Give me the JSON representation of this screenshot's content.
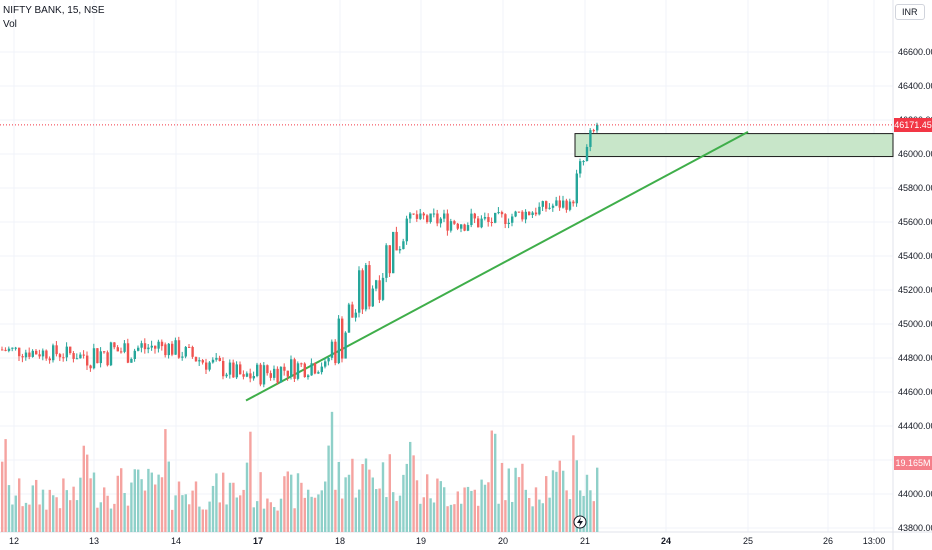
{
  "symbol_line": "NIFTY BANK, 15, NSE",
  "vol_label": "Vol",
  "currency": "INR",
  "last_price_label": "46171.45",
  "last_volume_label": "19.165M",
  "colors": {
    "up": "#26a69a",
    "down": "#ef5350",
    "vol_up": "#8fd0c9",
    "vol_down": "#f5a3a0",
    "trendline": "#3fae4a",
    "zone_fill": "#c8e6c9",
    "zone_border": "#1b1b1b",
    "last_price": "#f23645"
  },
  "chart_data": {
    "type": "candlestick",
    "y_axis": {
      "min": 43800,
      "max": 46800,
      "ticks": [
        "46600.00",
        "46400.00",
        "46200.00",
        "46000.00",
        "45800.00",
        "45600.00",
        "45400.00",
        "45200.00",
        "45000.00",
        "44800.00",
        "44600.00",
        "44400.00",
        "44200.00",
        "44000.00",
        "43800.00"
      ]
    },
    "x_axis": {
      "ticks": [
        {
          "label": "12",
          "bold": false
        },
        {
          "label": "13",
          "bold": false
        },
        {
          "label": "14",
          "bold": false
        },
        {
          "label": "17",
          "bold": true
        },
        {
          "label": "18",
          "bold": false
        },
        {
          "label": "19",
          "bold": false
        },
        {
          "label": "20",
          "bold": false
        },
        {
          "label": "21",
          "bold": false
        },
        {
          "label": "24",
          "bold": true
        },
        {
          "label": "25",
          "bold": false
        },
        {
          "label": "26",
          "bold": false
        },
        {
          "label": "13:00",
          "bold": false
        }
      ]
    },
    "trendline": {
      "from": {
        "day": "16",
        "price": 44550
      },
      "to": {
        "day": "25",
        "price": 46130
      }
    },
    "zone": {
      "from_day": "21",
      "to_day": "beyond 13:00",
      "top": 46120,
      "bottom": 45985
    },
    "last_price": 46171.45,
    "last_volume": "19.165M",
    "days": [
      {
        "day": "12",
        "open": 44850,
        "start": 44850,
        "end": 44820,
        "high": 44980,
        "low": 44700,
        "vol": 0.45
      },
      {
        "day": "13",
        "open": 44820,
        "start": 44820,
        "end": 44870,
        "high": 45100,
        "low": 44580,
        "vol": 0.55
      },
      {
        "day": "14",
        "open": 44880,
        "start": 44880,
        "end": 44690,
        "high": 44960,
        "low": 44610,
        "vol": 0.5
      },
      {
        "day": "17",
        "open": 44690,
        "start": 44690,
        "end": 44780,
        "high": 44980,
        "low": 44570,
        "vol": 0.5
      },
      {
        "day": "18",
        "open": 44780,
        "start": 44780,
        "end": 45620,
        "high": 45900,
        "low": 44760,
        "vol": 0.7
      },
      {
        "day": "19",
        "open": 45620,
        "start": 45620,
        "end": 45600,
        "high": 45660,
        "low": 45280,
        "vol": 0.5
      },
      {
        "day": "20",
        "open": 45600,
        "start": 45600,
        "end": 45720,
        "high": 45750,
        "low": 45490,
        "vol": 0.6
      },
      {
        "day": "21",
        "open": 45720,
        "start": 45720,
        "end": 46171.45,
        "high": 46250,
        "low": 45700,
        "vol": 0.55
      }
    ]
  }
}
